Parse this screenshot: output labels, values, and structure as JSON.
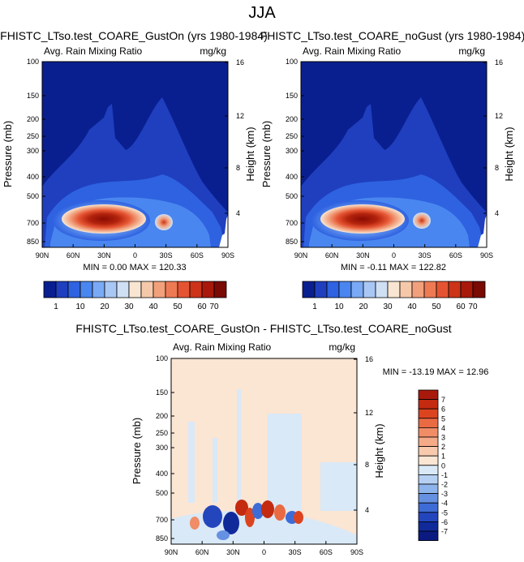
{
  "page_title": "JJA",
  "chart_data": [
    {
      "type": "heatmap",
      "title": "FHISTC_LTso.test_COARE_GustOn (yrs 1980-1984)",
      "left_subtitle": "Avg. Rain Mixing Ratio",
      "right_subtitle": "mg/kg",
      "ylabel": "Pressure (mb)",
      "ylabel_right": "Height (km)",
      "x_ticks": [
        "90N",
        "60N",
        "30N",
        "0",
        "30S",
        "60S",
        "90S"
      ],
      "y_ticks": [
        "100",
        "150",
        "200",
        "250",
        "300",
        "400",
        "500",
        "700",
        "850"
      ],
      "height_ticks": [
        "16",
        "12",
        "8",
        "4"
      ],
      "stats": "MIN =   0.00   MAX = 120.33",
      "colorbar_levels": [
        "1",
        "10",
        "20",
        "30",
        "40",
        "50",
        "60",
        "70"
      ],
      "colorbar_colors": [
        "#0a1f8f",
        "#1f3fbf",
        "#2e62e0",
        "#4a86f0",
        "#7aaaf5",
        "#a9c7f5",
        "#cfe0f5",
        "#f8e6d2",
        "#f6c8aa",
        "#f2a07c",
        "#ee7a54",
        "#e55432",
        "#cc3318",
        "#a8190c",
        "#7a0a04"
      ]
    },
    {
      "type": "heatmap",
      "title": "FHISTC_LTso.test_COARE_noGust (yrs 1980-1984)",
      "left_subtitle": "Avg. Rain Mixing Ratio",
      "right_subtitle": "mg/kg",
      "ylabel": "Pressure (mb)",
      "ylabel_right": "Height (km)",
      "x_ticks": [
        "90N",
        "60N",
        "30N",
        "0",
        "30S",
        "60S",
        "90S"
      ],
      "y_ticks": [
        "100",
        "150",
        "200",
        "250",
        "300",
        "400",
        "500",
        "700",
        "850"
      ],
      "height_ticks": [
        "16",
        "12",
        "8",
        "4"
      ],
      "stats": "MIN =  -0.11   MAX = 122.82",
      "colorbar_levels": [
        "1",
        "10",
        "20",
        "30",
        "40",
        "50",
        "60",
        "70"
      ],
      "colorbar_colors": [
        "#0a1f8f",
        "#1f3fbf",
        "#2e62e0",
        "#4a86f0",
        "#7aaaf5",
        "#a9c7f5",
        "#cfe0f5",
        "#f8e6d2",
        "#f6c8aa",
        "#f2a07c",
        "#ee7a54",
        "#e55432",
        "#cc3318",
        "#a8190c",
        "#7a0a04"
      ]
    },
    {
      "type": "heatmap",
      "title": "FHISTC_LTso.test_COARE_GustOn - FHISTC_LTso.test_COARE_noGust",
      "left_subtitle": "Avg. Rain Mixing Ratio",
      "right_subtitle": "mg/kg",
      "ylabel": "Pressure (mb)",
      "ylabel_right": "Height (km)",
      "x_ticks": [
        "90N",
        "60N",
        "30N",
        "0",
        "30S",
        "60S",
        "90S"
      ],
      "y_ticks": [
        "100",
        "150",
        "200",
        "250",
        "300",
        "400",
        "500",
        "700",
        "850"
      ],
      "height_ticks": [
        "16",
        "12",
        "8",
        "4"
      ],
      "stats": "MIN = -13.19   MAX =  12.96",
      "colorbar_levels": [
        "7",
        "6",
        "5",
        "4",
        "3",
        "2",
        "1",
        "0",
        "-1",
        "-2",
        "-3",
        "-4",
        "-5",
        "-6",
        "-7"
      ],
      "colorbar_colors": [
        "#a8190c",
        "#c42a10",
        "#dc4420",
        "#ea6a42",
        "#f08c66",
        "#f5aa88",
        "#f8c9ad",
        "#fbe5d3",
        "#d9e9f7",
        "#b5d0f2",
        "#8eb4ec",
        "#6691e2",
        "#3e6cd6",
        "#2446bd",
        "#112a9a",
        "#0a1a80"
      ]
    }
  ]
}
